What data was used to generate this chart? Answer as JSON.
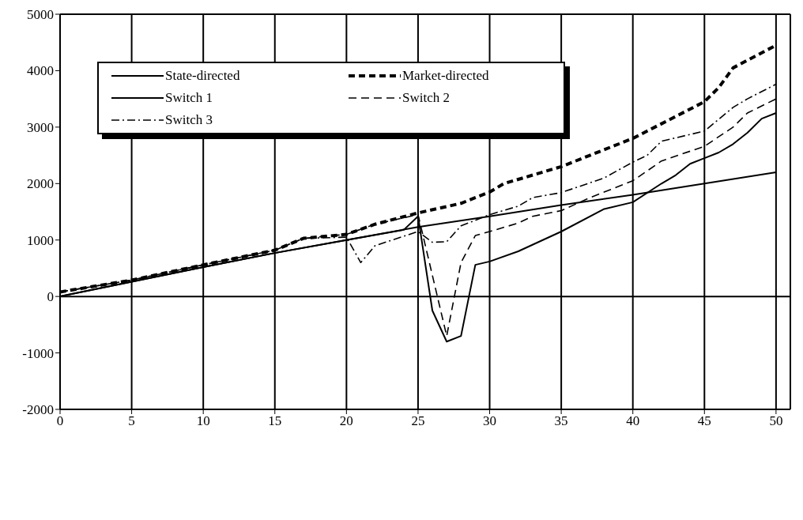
{
  "chart_data": {
    "type": "line",
    "xlim": [
      0,
      51
    ],
    "xticks": [
      0,
      5,
      10,
      15,
      20,
      25,
      30,
      35,
      40,
      45,
      50
    ],
    "ylim": [
      -2000,
      5000
    ],
    "yticks": [
      -2000,
      -1000,
      0,
      1000,
      2000,
      3000,
      4000,
      5000
    ],
    "grid": "x",
    "legend": "top left",
    "marker": "none",
    "ref_lines": [
      {
        "axis": "y",
        "value": 0
      }
    ],
    "series": [
      {
        "name": "State-directed",
        "color": "#000000",
        "line_style": "solid",
        "x": [
          0,
          5,
          10,
          15,
          20,
          25,
          30,
          35,
          40,
          45,
          50
        ],
        "values": [
          0,
          260,
          520,
          770,
          1000,
          1230,
          1420,
          1620,
          1800,
          2000,
          2200
        ]
      },
      {
        "name": "Market-directed",
        "color": "#000000",
        "line_style": "dotted",
        "x": [
          0,
          5,
          10,
          15,
          17,
          20,
          22,
          25,
          28,
          30,
          31,
          35,
          40,
          45,
          46,
          47,
          50
        ],
        "values": [
          80,
          290,
          560,
          820,
          1030,
          1100,
          1280,
          1480,
          1650,
          1850,
          2000,
          2300,
          2800,
          3450,
          3700,
          4050,
          4450
        ]
      },
      {
        "name": "Switch 1",
        "color": "#000000",
        "line_style": "solid",
        "x": [
          0,
          5,
          10,
          15,
          20,
          24,
          25,
          26,
          27,
          28,
          29,
          30,
          32,
          35,
          38,
          40,
          42,
          43,
          44,
          45,
          46,
          47,
          48,
          49,
          50
        ],
        "values": [
          0,
          260,
          520,
          770,
          1000,
          1180,
          1420,
          -250,
          -800,
          -700,
          560,
          620,
          800,
          1150,
          1550,
          1670,
          2000,
          2150,
          2350,
          2450,
          2550,
          2700,
          2900,
          3150,
          3250
        ]
      },
      {
        "name": "Switch 2",
        "color": "#000000",
        "line_style": "dashed",
        "x": [
          0,
          5,
          10,
          15,
          17,
          20,
          22,
          25,
          27,
          28,
          29,
          30,
          32,
          33,
          35,
          37,
          40,
          42,
          45,
          47,
          48,
          50
        ],
        "values": [
          80,
          290,
          560,
          820,
          1030,
          1100,
          1280,
          1450,
          -700,
          600,
          1080,
          1150,
          1300,
          1420,
          1520,
          1750,
          2050,
          2400,
          2660,
          3000,
          3250,
          3500
        ]
      },
      {
        "name": "Switch 3",
        "color": "#000000",
        "line_style": "dashdot",
        "x": [
          0,
          5,
          10,
          15,
          17,
          20,
          21,
          22,
          25,
          26,
          27,
          28,
          30,
          32,
          33,
          35,
          38,
          40,
          41,
          42,
          45,
          47,
          48,
          50
        ],
        "values": [
          80,
          290,
          560,
          820,
          1030,
          1050,
          600,
          900,
          1150,
          960,
          970,
          1250,
          1450,
          1600,
          1750,
          1840,
          2100,
          2380,
          2500,
          2750,
          2930,
          3350,
          3500,
          3760
        ]
      }
    ]
  }
}
